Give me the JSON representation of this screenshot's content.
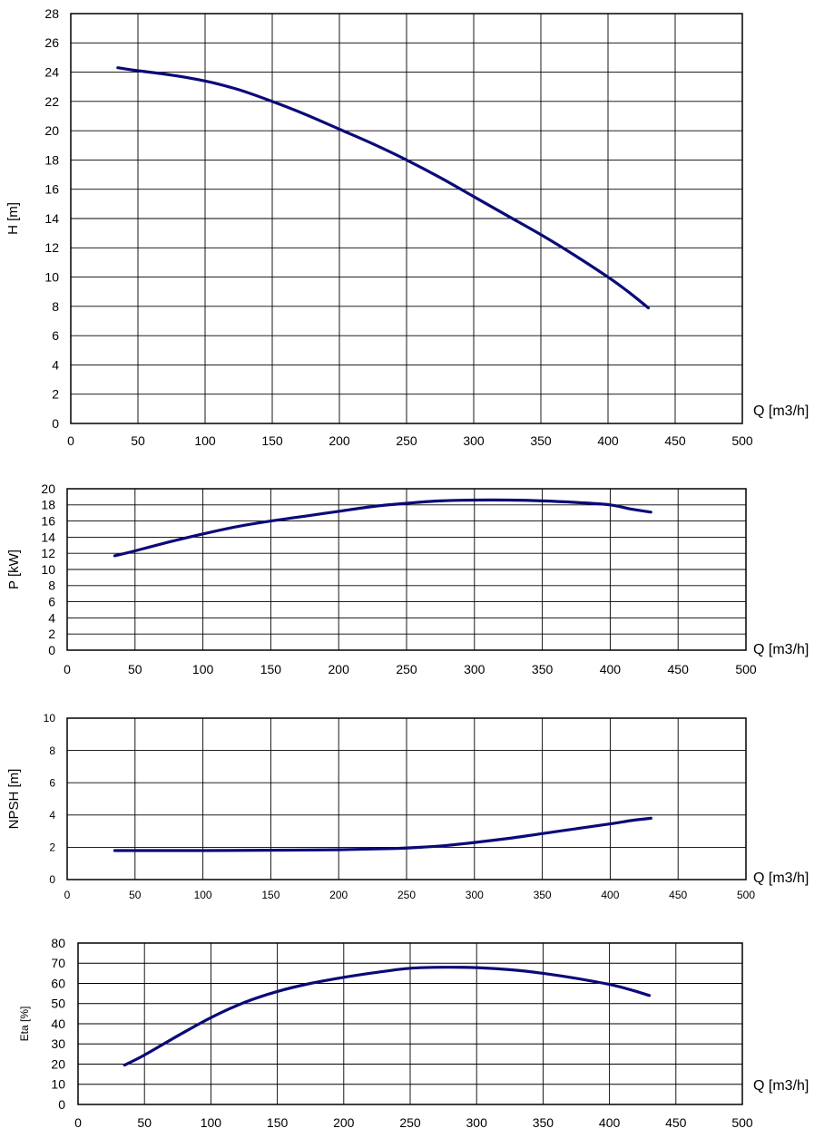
{
  "chart_data": [
    {
      "type": "line",
      "ylabel": "H [m]",
      "xlabel": "Q [m3/h]",
      "xlim": [
        0,
        500
      ],
      "ylim": [
        0,
        28
      ],
      "xticks": [
        "0",
        "50",
        "100",
        "150",
        "200",
        "250",
        "300",
        "350",
        "400",
        "450",
        "500"
      ],
      "yticks": [
        "0",
        "2",
        "4",
        "6",
        "8",
        "10",
        "12",
        "14",
        "16",
        "18",
        "20",
        "22",
        "24",
        "26",
        "28"
      ],
      "grid": true,
      "series": [
        {
          "x": [
            35,
            50,
            75,
            100,
            125,
            150,
            175,
            200,
            225,
            250,
            275,
            300,
            325,
            350,
            375,
            400,
            415,
            430
          ],
          "y": [
            24.3,
            24.1,
            23.8,
            23.4,
            22.8,
            22.0,
            21.1,
            20.1,
            19.1,
            18.0,
            16.8,
            15.5,
            14.2,
            12.9,
            11.5,
            10.0,
            9.0,
            7.9
          ]
        }
      ]
    },
    {
      "type": "line",
      "ylabel": "P [kW]",
      "xlabel": "Q [m3/h]",
      "xlim": [
        0,
        500
      ],
      "ylim": [
        0,
        20
      ],
      "xticks": [
        "0",
        "50",
        "100",
        "150",
        "200",
        "250",
        "300",
        "350",
        "400",
        "450",
        "500"
      ],
      "yticks": [
        "0",
        "2",
        "4",
        "6",
        "8",
        "10",
        "12",
        "14",
        "16",
        "18",
        "20"
      ],
      "grid": true,
      "series": [
        {
          "x": [
            35,
            50,
            75,
            100,
            125,
            150,
            175,
            200,
            225,
            250,
            275,
            300,
            325,
            350,
            375,
            400,
            415,
            430
          ],
          "y": [
            11.7,
            12.3,
            13.4,
            14.4,
            15.3,
            16.0,
            16.6,
            17.2,
            17.8,
            18.2,
            18.5,
            18.6,
            18.6,
            18.5,
            18.3,
            18.0,
            17.5,
            17.1
          ]
        }
      ]
    },
    {
      "type": "line",
      "ylabel": "NPSH [m]",
      "xlabel": "Q [m3/h]",
      "xlim": [
        0,
        500
      ],
      "ylim": [
        0,
        10
      ],
      "xticks": [
        "0",
        "50",
        "100",
        "150",
        "200",
        "250",
        "300",
        "350",
        "400",
        "450",
        "500"
      ],
      "yticks": [
        "0",
        "2",
        "4",
        "6",
        "8",
        "10"
      ],
      "grid": true,
      "series": [
        {
          "x": [
            35,
            100,
            150,
            200,
            240,
            260,
            280,
            300,
            325,
            350,
            375,
            400,
            415,
            430
          ],
          "y": [
            1.8,
            1.8,
            1.82,
            1.85,
            1.92,
            2.0,
            2.12,
            2.3,
            2.55,
            2.85,
            3.15,
            3.45,
            3.65,
            3.8
          ]
        }
      ]
    },
    {
      "type": "line",
      "ylabel": "Eta [%]",
      "xlabel": "Q [m3/h]",
      "xlim": [
        0,
        500
      ],
      "ylim": [
        0,
        80
      ],
      "xticks": [
        "0",
        "50",
        "100",
        "150",
        "200",
        "250",
        "300",
        "350",
        "400",
        "450",
        "500"
      ],
      "yticks": [
        "0",
        "10",
        "20",
        "30",
        "40",
        "50",
        "60",
        "70",
        "80"
      ],
      "grid": true,
      "series": [
        {
          "x": [
            35,
            50,
            75,
            100,
            125,
            150,
            175,
            200,
            225,
            250,
            275,
            300,
            325,
            350,
            375,
            400,
            415,
            430
          ],
          "y": [
            19.5,
            24.5,
            34.0,
            43.0,
            50.5,
            56.0,
            60.0,
            63.0,
            65.5,
            67.5,
            68.0,
            67.8,
            66.8,
            65.0,
            62.5,
            59.5,
            57.0,
            54.0
          ]
        }
      ]
    }
  ]
}
